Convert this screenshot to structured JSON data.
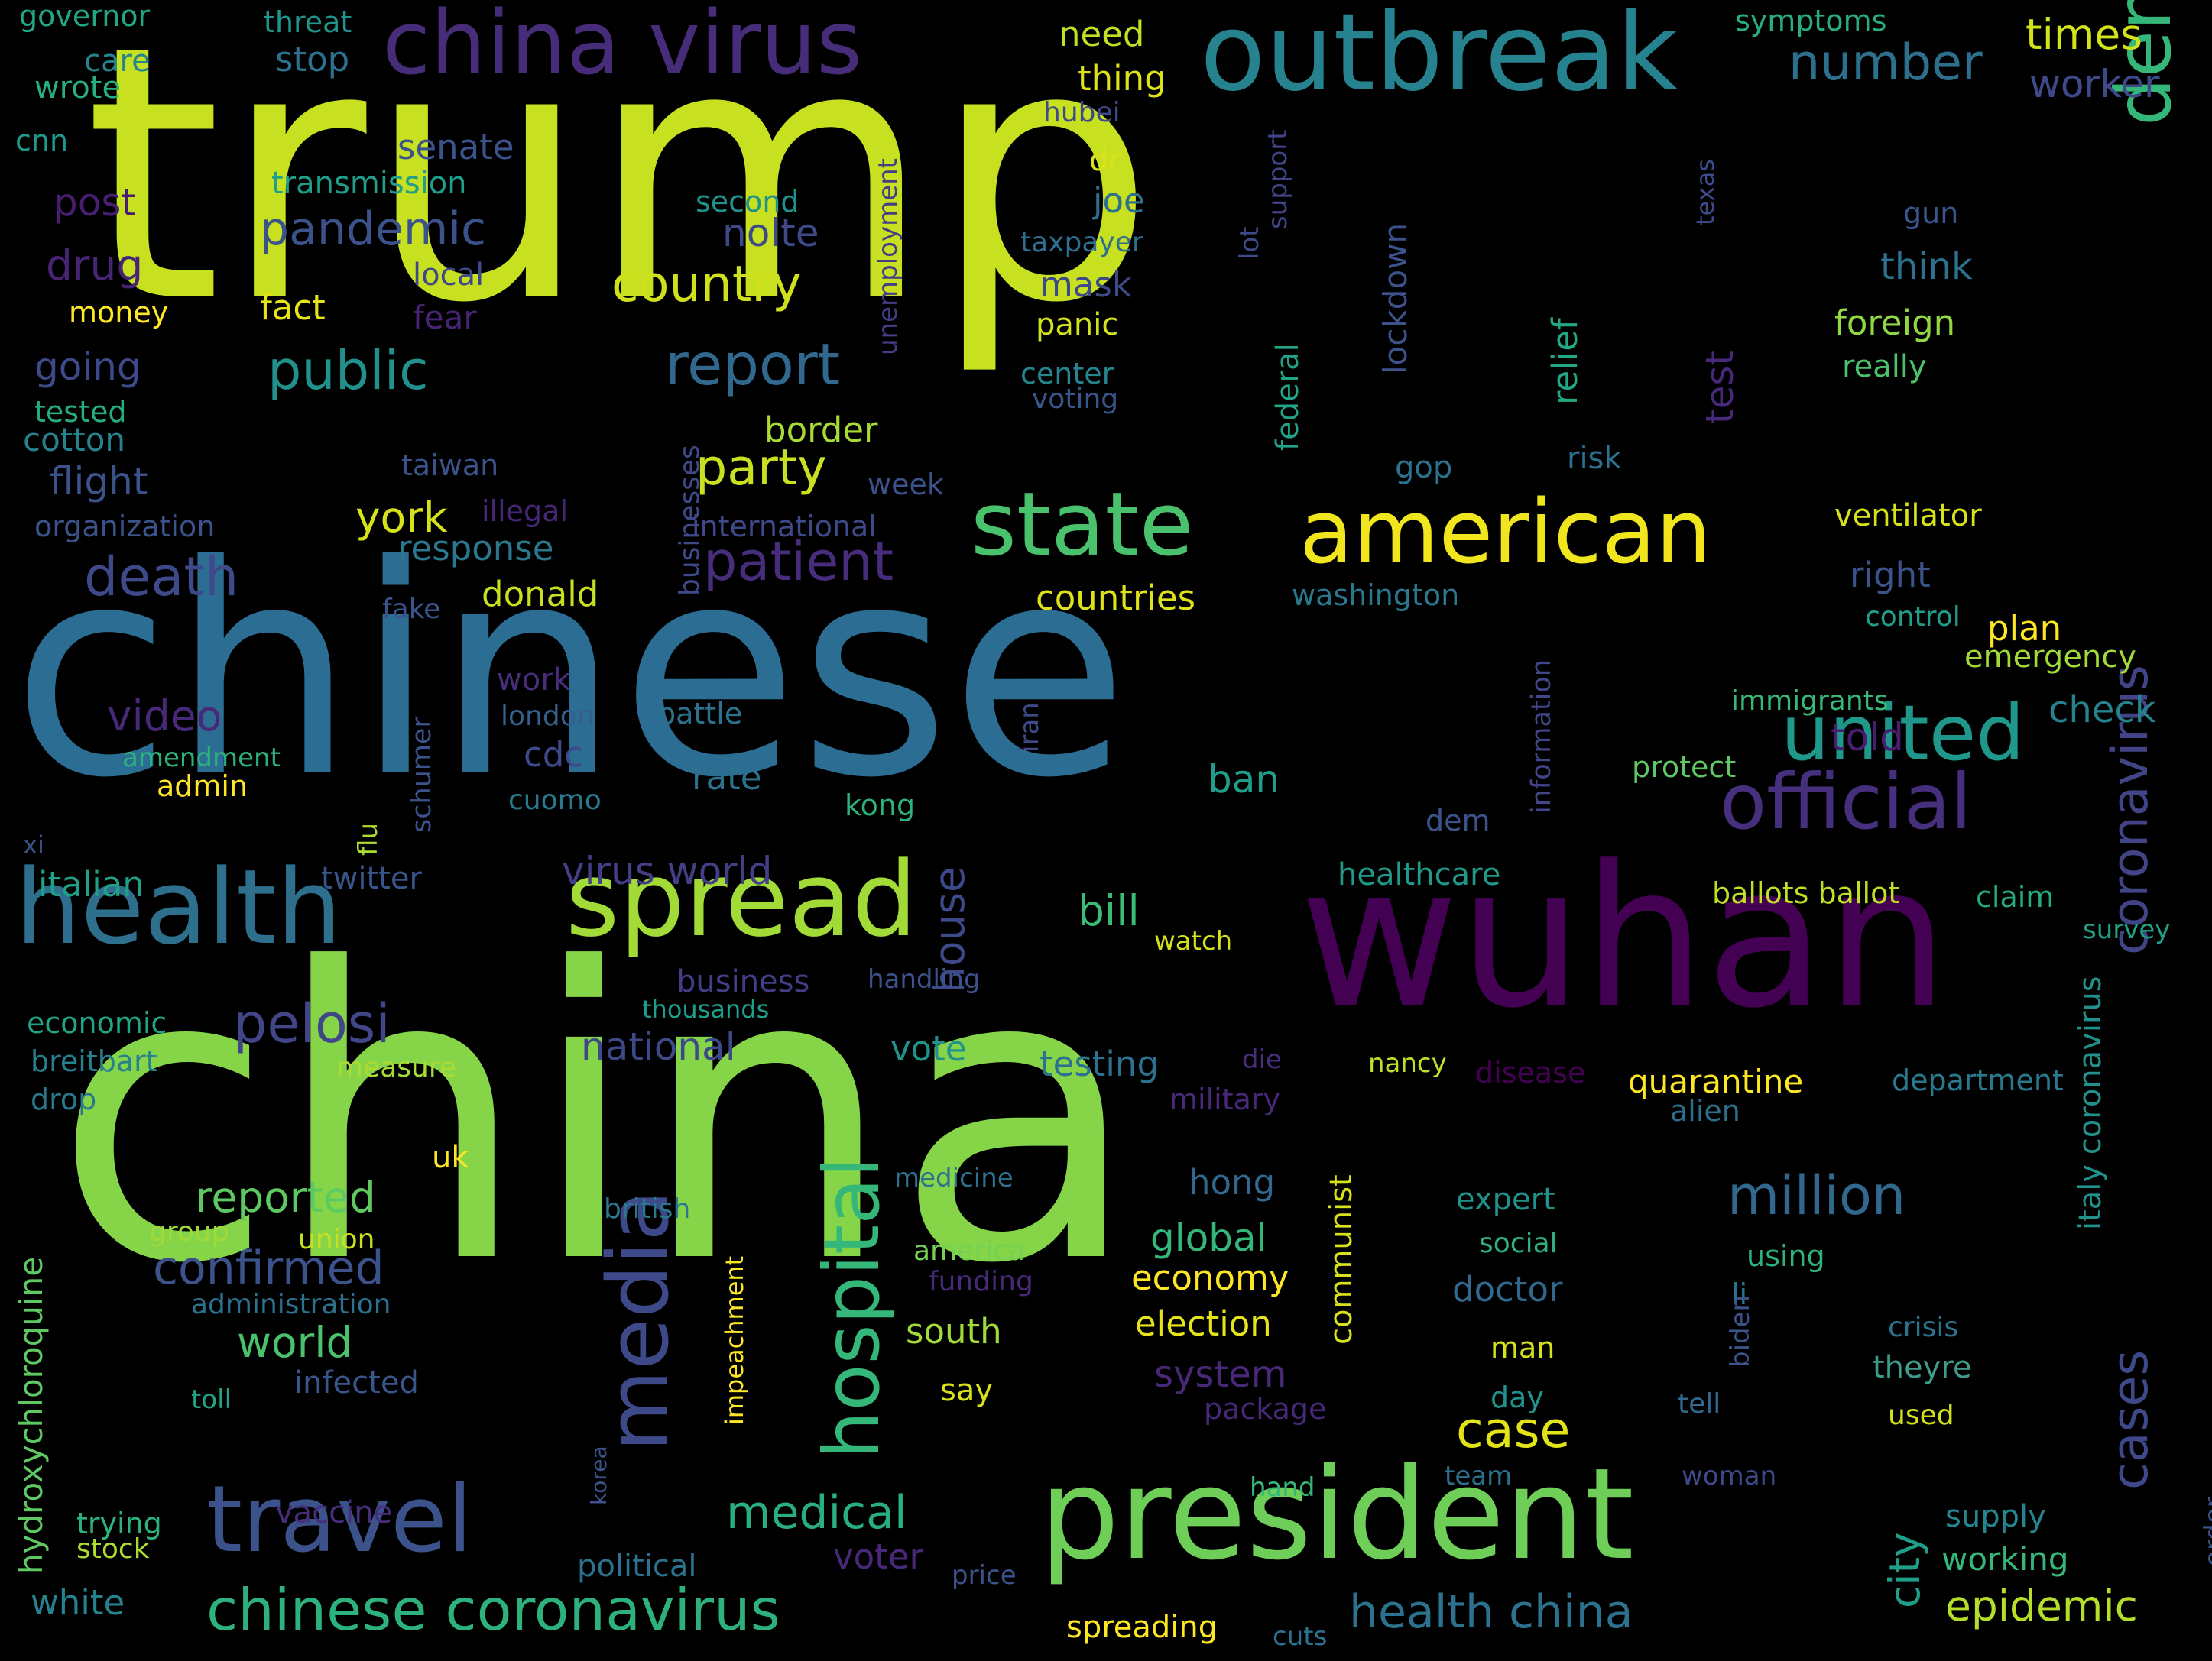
{
  "title": "",
  "palette": [
    "#440154",
    "#482878",
    "#3e4989",
    "#31688e",
    "#26828e",
    "#1f9e89",
    "#35b779",
    "#6ece58",
    "#b5de2b",
    "#fde725"
  ],
  "words": [
    {
      "text": "trump",
      "color": "#c7e020"
    },
    {
      "text": "chinese",
      "color": "#2c6e93"
    },
    {
      "text": "china",
      "color": "#86d549"
    },
    {
      "text": "wuhan",
      "color": "#440154"
    },
    {
      "text": "president",
      "color": "#6ece58"
    },
    {
      "text": "outbreak",
      "color": "#26828e"
    },
    {
      "text": "china virus",
      "color": "#472c7a"
    },
    {
      "text": "health",
      "color": "#2e6f8e"
    },
    {
      "text": "spread",
      "color": "#a2da37"
    },
    {
      "text": "american",
      "color": "#f1e51d"
    },
    {
      "text": "state",
      "color": "#4ac16d"
    },
    {
      "text": "travel",
      "color": "#3b528b"
    },
    {
      "text": "democrat",
      "color": "#35b779"
    },
    {
      "text": "official",
      "color": "#46307e"
    },
    {
      "text": "united",
      "color": "#1f988b"
    },
    {
      "text": "media",
      "color": "#3e4989"
    },
    {
      "text": "hospital",
      "color": "#35b779"
    },
    {
      "text": "chinese coronavirus",
      "color": "#2db27d"
    },
    {
      "text": "coronavirus",
      "color": "#414487"
    },
    {
      "text": "cases",
      "color": "#3e4989"
    },
    {
      "text": "report",
      "color": "#31688e"
    },
    {
      "text": "patient",
      "color": "#472d7b"
    },
    {
      "text": "death",
      "color": "#3e4989"
    },
    {
      "text": "public",
      "color": "#21918c"
    },
    {
      "text": "country",
      "color": "#d0e11c"
    },
    {
      "text": "number",
      "color": "#2d708e"
    },
    {
      "text": "million",
      "color": "#31688e"
    },
    {
      "text": "pelosi",
      "color": "#404688"
    },
    {
      "text": "party",
      "color": "#c8e020"
    },
    {
      "text": "pandemic",
      "color": "#3b528b"
    },
    {
      "text": "times",
      "color": "#d2e21b"
    },
    {
      "text": "case",
      "color": "#e2e418"
    },
    {
      "text": "epidemic",
      "color": "#b5de2b"
    },
    {
      "text": "health china",
      "color": "#2c728e"
    },
    {
      "text": "medical",
      "color": "#29af7f"
    },
    {
      "text": "confirmed",
      "color": "#3b528b"
    },
    {
      "text": "reported",
      "color": "#5ec962"
    },
    {
      "text": "world",
      "color": "#4ac16d"
    },
    {
      "text": "national",
      "color": "#3e4989"
    },
    {
      "text": "virus world",
      "color": "#433e85"
    },
    {
      "text": "video",
      "color": "#482878"
    },
    {
      "text": "york",
      "color": "#d5e21a"
    },
    {
      "text": "response",
      "color": "#2a788e"
    },
    {
      "text": "drug",
      "color": "#482475"
    },
    {
      "text": "post",
      "color": "#481f70"
    },
    {
      "text": "going",
      "color": "#3e4989"
    },
    {
      "text": "flight",
      "color": "#3b528b"
    },
    {
      "text": "cotton",
      "color": "#26828e"
    },
    {
      "text": "senate",
      "color": "#3b528b"
    },
    {
      "text": "transmission",
      "color": "#1f9e89"
    },
    {
      "text": "nolte",
      "color": "#3e4989"
    },
    {
      "text": "joe",
      "color": "#2d708e"
    },
    {
      "text": "dr",
      "color": "#d8e219"
    },
    {
      "text": "stop",
      "color": "#2c728e"
    },
    {
      "text": "care",
      "color": "#25848e"
    },
    {
      "text": "wrote",
      "color": "#29af7f"
    },
    {
      "text": "governor",
      "color": "#22a785"
    },
    {
      "text": "threat",
      "color": "#1f968b"
    },
    {
      "text": "symptoms",
      "color": "#27ad81"
    },
    {
      "text": "cnn",
      "color": "#1f9a8a"
    },
    {
      "text": "need",
      "color": "#c2df23"
    },
    {
      "text": "thing",
      "color": "#dde318"
    },
    {
      "text": "hubei",
      "color": "#3e4989"
    },
    {
      "text": "worker",
      "color": "#3e4989"
    },
    {
      "text": "second",
      "color": "#21918c"
    },
    {
      "text": "unemployment",
      "color": "#433e85"
    },
    {
      "text": "taxpayer",
      "color": "#2e6e8e"
    },
    {
      "text": "lot",
      "color": "#3e4989"
    },
    {
      "text": "support",
      "color": "#414487"
    },
    {
      "text": "lockdown",
      "color": "#3b528b"
    },
    {
      "text": "texas",
      "color": "#3e4989"
    },
    {
      "text": "gun",
      "color": "#39568c"
    },
    {
      "text": "think",
      "color": "#2c728e"
    },
    {
      "text": "foreign",
      "color": "#90d743"
    },
    {
      "text": "really",
      "color": "#4ac16d"
    },
    {
      "text": "mask",
      "color": "#3e4989"
    },
    {
      "text": "panic",
      "color": "#d2e21b"
    },
    {
      "text": "center",
      "color": "#25848e"
    },
    {
      "text": "voting",
      "color": "#39568c"
    },
    {
      "text": "federal",
      "color": "#20a386"
    },
    {
      "text": "relief",
      "color": "#22a884"
    },
    {
      "text": "test",
      "color": "#482878"
    },
    {
      "text": "risk",
      "color": "#2c728e"
    },
    {
      "text": "gop",
      "color": "#2c728e"
    },
    {
      "text": "fact",
      "color": "#e5e419"
    },
    {
      "text": "local",
      "color": "#3e4989"
    },
    {
      "text": "money",
      "color": "#fde725"
    },
    {
      "text": "fear",
      "color": "#482475"
    },
    {
      "text": "tested",
      "color": "#25ac82"
    },
    {
      "text": "taiwan",
      "color": "#3b528b"
    },
    {
      "text": "illegal",
      "color": "#482677"
    },
    {
      "text": "organization",
      "color": "#3b528b"
    },
    {
      "text": "businesses",
      "color": "#3e4989"
    },
    {
      "text": "international",
      "color": "#3e4989"
    },
    {
      "text": "week",
      "color": "#3b528b"
    },
    {
      "text": "border",
      "color": "#a8db34"
    },
    {
      "text": "ventilator",
      "color": "#d8e219"
    },
    {
      "text": "right",
      "color": "#3b528b"
    },
    {
      "text": "plan",
      "color": "#fde725"
    },
    {
      "text": "check",
      "color": "#26828e"
    },
    {
      "text": "control",
      "color": "#1f9e89"
    },
    {
      "text": "emergency",
      "color": "#a2da37"
    },
    {
      "text": "told",
      "color": "#481f70"
    },
    {
      "text": "immigrants",
      "color": "#38b977"
    },
    {
      "text": "dem",
      "color": "#3b528b"
    },
    {
      "text": "washington",
      "color": "#2a788e"
    },
    {
      "text": "countries",
      "color": "#dde318"
    },
    {
      "text": "donald",
      "color": "#c8e020"
    },
    {
      "text": "fake",
      "color": "#3b528b"
    },
    {
      "text": "information",
      "color": "#404688"
    },
    {
      "text": "iran",
      "color": "#3e4989"
    },
    {
      "text": "work",
      "color": "#472d7b"
    },
    {
      "text": "london",
      "color": "#35608d"
    },
    {
      "text": "battle",
      "color": "#2c728e"
    },
    {
      "text": "schumer",
      "color": "#3b528b"
    },
    {
      "text": "cdc",
      "color": "#3e4989"
    },
    {
      "text": "cuomo",
      "color": "#2a788e"
    },
    {
      "text": "rate",
      "color": "#2c728e"
    },
    {
      "text": "kong",
      "color": "#2db27d"
    },
    {
      "text": "ban",
      "color": "#1f9e89"
    },
    {
      "text": "protect",
      "color": "#5ec962"
    },
    {
      "text": "amendment",
      "color": "#2db27d"
    },
    {
      "text": "admin",
      "color": "#fde725"
    },
    {
      "text": "flu",
      "color": "#addc30"
    },
    {
      "text": "xi",
      "color": "#3b528b"
    },
    {
      "text": "italian",
      "color": "#1fa188"
    },
    {
      "text": "twitter",
      "color": "#39568c"
    },
    {
      "text": "healthcare",
      "color": "#1f9a8a"
    },
    {
      "text": "bill",
      "color": "#3bbb75"
    },
    {
      "text": "house",
      "color": "#3e4989"
    },
    {
      "text": "ballots ballot",
      "color": "#c0df25"
    },
    {
      "text": "claim",
      "color": "#25ab82"
    },
    {
      "text": "survey",
      "color": "#1fa188"
    },
    {
      "text": "watch",
      "color": "#d5e21a"
    },
    {
      "text": "business",
      "color": "#433e85"
    },
    {
      "text": "handling",
      "color": "#3b528b"
    },
    {
      "text": "thousands",
      "color": "#1f9e89"
    },
    {
      "text": "economic",
      "color": "#20a386"
    },
    {
      "text": "breitbart",
      "color": "#27808e"
    },
    {
      "text": "measure",
      "color": "#a8db34"
    },
    {
      "text": "drop",
      "color": "#2a788e"
    },
    {
      "text": "vote",
      "color": "#21918c"
    },
    {
      "text": "testing",
      "color": "#2c728e"
    },
    {
      "text": "die",
      "color": "#472d7b"
    },
    {
      "text": "nancy",
      "color": "#c0df25"
    },
    {
      "text": "disease",
      "color": "#440154"
    },
    {
      "text": "quarantine",
      "color": "#fde725"
    },
    {
      "text": "department",
      "color": "#2a788e"
    },
    {
      "text": "italy coronavirus",
      "color": "#21918c"
    },
    {
      "text": "military",
      "color": "#482878"
    },
    {
      "text": "communist",
      "color": "#d8e219"
    },
    {
      "text": "alien",
      "color": "#2d708e"
    },
    {
      "text": "uk",
      "color": "#fde725"
    },
    {
      "text": "hong",
      "color": "#31688e"
    },
    {
      "text": "medicine",
      "color": "#2c728e"
    },
    {
      "text": "hydroxychloroquine",
      "color": "#5ec962"
    },
    {
      "text": "british",
      "color": "#2a788e"
    },
    {
      "text": "group",
      "color": "#9fda3a"
    },
    {
      "text": "union",
      "color": "#c8e020"
    },
    {
      "text": "america",
      "color": "#75d054"
    },
    {
      "text": "funding",
      "color": "#482878"
    },
    {
      "text": "global",
      "color": "#35b779"
    },
    {
      "text": "expert",
      "color": "#21918c"
    },
    {
      "text": "social",
      "color": "#2db27d"
    },
    {
      "text": "using",
      "color": "#2db27d"
    },
    {
      "text": "economy",
      "color": "#fde725"
    },
    {
      "text": "doctor",
      "color": "#31688e"
    },
    {
      "text": "li",
      "color": "#2c728e"
    },
    {
      "text": "biden",
      "color": "#3b528b"
    },
    {
      "text": "administration",
      "color": "#2c728e"
    },
    {
      "text": "impeachment",
      "color": "#fde725"
    },
    {
      "text": "election",
      "color": "#e5e419"
    },
    {
      "text": "crisis",
      "color": "#2c728e"
    },
    {
      "text": "man",
      "color": "#d5e21a"
    },
    {
      "text": "theyre",
      "color": "#3e9c8c"
    },
    {
      "text": "south",
      "color": "#a2da37"
    },
    {
      "text": "system",
      "color": "#482878"
    },
    {
      "text": "infected",
      "color": "#39568c"
    },
    {
      "text": "toll",
      "color": "#20a386"
    },
    {
      "text": "say",
      "color": "#d8e219"
    },
    {
      "text": "day",
      "color": "#21918c"
    },
    {
      "text": "tell",
      "color": "#31688e"
    },
    {
      "text": "used",
      "color": "#d5e21a"
    },
    {
      "text": "package",
      "color": "#482878"
    },
    {
      "text": "hand",
      "color": "#35b779"
    },
    {
      "text": "team",
      "color": "#2d708e"
    },
    {
      "text": "woman",
      "color": "#3e4989"
    },
    {
      "text": "korea",
      "color": "#3b528b"
    },
    {
      "text": "trying",
      "color": "#2db27d"
    },
    {
      "text": "vaccine",
      "color": "#472d7b"
    },
    {
      "text": "stock",
      "color": "#addc30"
    },
    {
      "text": "supply",
      "color": "#25848e"
    },
    {
      "text": "order",
      "color": "#3b528b"
    },
    {
      "text": "voter",
      "color": "#482878"
    },
    {
      "text": "political",
      "color": "#2c728e"
    },
    {
      "text": "working",
      "color": "#35b779"
    },
    {
      "text": "price",
      "color": "#3b528b"
    },
    {
      "text": "city",
      "color": "#1f9e89"
    },
    {
      "text": "white",
      "color": "#26828e"
    },
    {
      "text": "spreading",
      "color": "#fde725"
    },
    {
      "text": "cuts",
      "color": "#2c728e"
    }
  ]
}
